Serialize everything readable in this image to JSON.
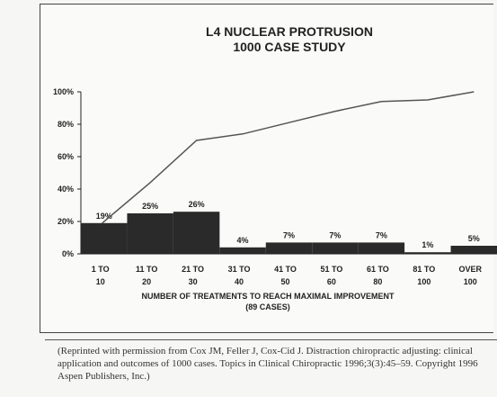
{
  "chart_data": {
    "type": "bar",
    "title": [
      "L4 NUCLEAR PROTRUSION",
      "1000 CASE STUDY"
    ],
    "xlabel": [
      "NUMBER OF TREATMENTS TO REACH MAXIMAL IMPROVEMENT",
      "(89 CASES)"
    ],
    "ylabel": "",
    "ylim": [
      0,
      100
    ],
    "yticks": [
      "0%",
      "20%",
      "40%",
      "60%",
      "80%",
      "100%"
    ],
    "categories": [
      [
        "1 TO",
        "10"
      ],
      [
        "11 TO",
        "20"
      ],
      [
        "21 TO",
        "30"
      ],
      [
        "31 TO",
        "40"
      ],
      [
        "41 TO",
        "50"
      ],
      [
        "51 TO",
        "60"
      ],
      [
        "61 TO",
        "80"
      ],
      [
        "81 TO",
        "100"
      ],
      [
        "OVER",
        "100"
      ]
    ],
    "values": [
      19,
      25,
      26,
      4,
      7,
      7,
      7,
      1,
      5
    ],
    "value_labels": [
      "19%",
      "25%",
      "26%",
      "4%",
      "7%",
      "7%",
      "7%",
      "1%",
      "5%"
    ],
    "cumulative": [
      19,
      44,
      70,
      74,
      81,
      88,
      94,
      95,
      100
    ],
    "grid": false,
    "colors": {
      "bar": "#2a2a2a",
      "line": "#555555",
      "axis": "#222222"
    }
  },
  "caption": "(Reprinted with permission from Cox JM, Feller J, Cox-Cid J. Distraction chiropractic adjusting: clinical application and outcomes of 1000 cases. Topics in Clinical Chiropractic 1996;3(3):45–59. Copyright 1996 Aspen Publishers, Inc.)"
}
